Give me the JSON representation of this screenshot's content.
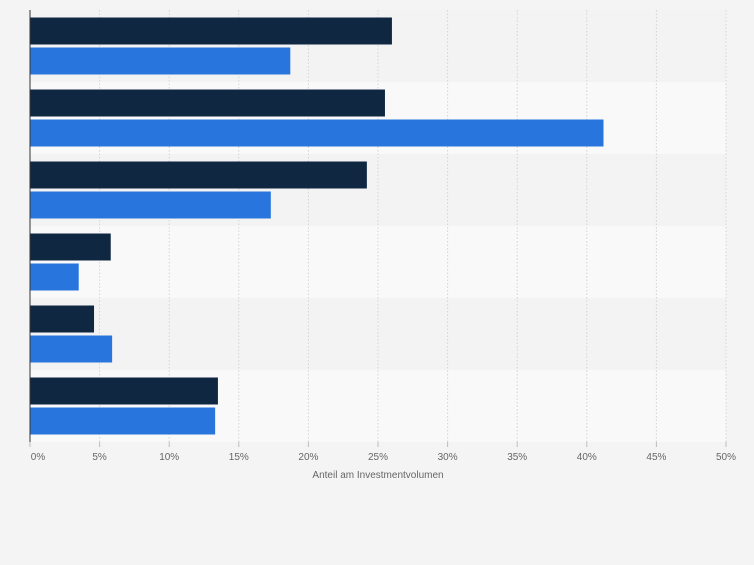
{
  "chart_data": {
    "type": "bar",
    "orientation": "horizontal",
    "categories": [
      "",
      "",
      "",
      "",
      "",
      ""
    ],
    "series": [
      {
        "name": "",
        "color": "#0f2741",
        "values": [
          26.0,
          25.5,
          24.2,
          5.8,
          4.6,
          13.5
        ]
      },
      {
        "name": "",
        "color": "#2876dd",
        "values": [
          18.7,
          41.2,
          17.3,
          3.5,
          5.9,
          13.3
        ]
      }
    ],
    "title": "",
    "xlabel": "Anteil am Investmentvolumen",
    "ylabel": "",
    "xlim": [
      0,
      50
    ],
    "xticks": [
      "0%",
      "5%",
      "10%",
      "15%",
      "20%",
      "25%",
      "30%",
      "35%",
      "40%",
      "45%",
      "50%"
    ],
    "grid": true,
    "legend": "none"
  }
}
